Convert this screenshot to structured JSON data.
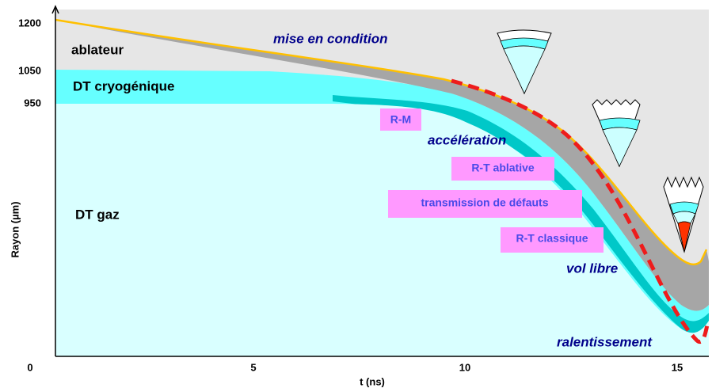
{
  "axes": {
    "y_label": "Rayon (µm)",
    "x_label": "t (ns)",
    "origin": "0",
    "y_ticks": [
      "1200",
      "1050",
      "950"
    ],
    "x_ticks": [
      "5",
      "10",
      "15"
    ]
  },
  "regions": [
    "ablateur",
    "DT cryogénique",
    "DT gaz"
  ],
  "phases": [
    "mise en condition",
    "accélération",
    "vol libre",
    "ralentissement"
  ],
  "instabilities": [
    "R-M",
    "R-T ablative",
    "transmission de défauts",
    "R-T classique"
  ]
}
